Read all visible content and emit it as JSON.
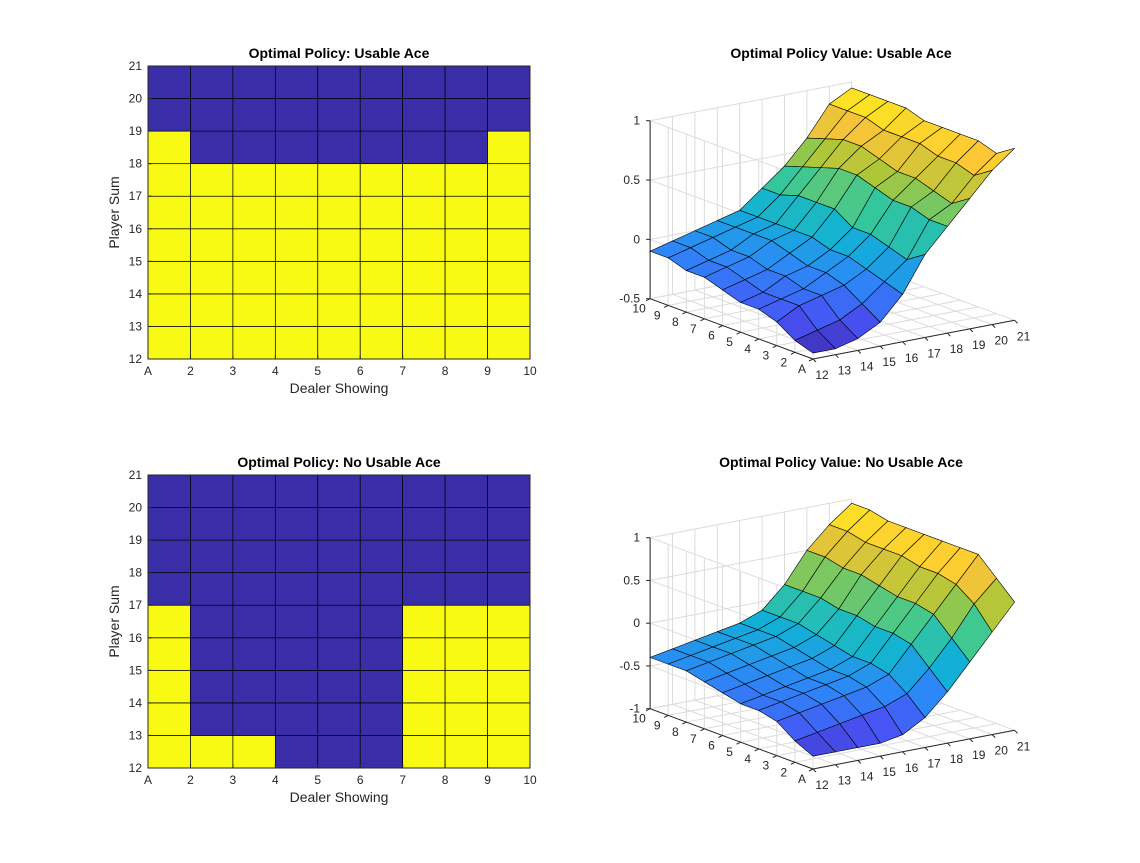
{
  "chart_data": [
    {
      "type": "heatmap",
      "title": "Optimal Policy: Usable Ace",
      "xlabel": "Dealer Showing",
      "ylabel": "Player Sum",
      "x_ticks": [
        "A",
        "2",
        "3",
        "4",
        "5",
        "6",
        "7",
        "8",
        "9",
        "10"
      ],
      "y_ticks": [
        "12",
        "13",
        "14",
        "15",
        "16",
        "17",
        "18",
        "19",
        "20",
        "21"
      ],
      "x_categories": [
        "A",
        "2",
        "3",
        "4",
        "5",
        "6",
        "7",
        "8",
        "9"
      ],
      "y_categories": [
        12,
        13,
        14,
        15,
        16,
        17,
        18,
        19,
        20
      ],
      "value_legend": {
        "0": "#3a2ea8",
        "1": "#f9fa14"
      },
      "rows": [
        [
          1,
          1,
          1,
          1,
          1,
          1,
          1,
          1,
          1
        ],
        [
          1,
          1,
          1,
          1,
          1,
          1,
          1,
          1,
          1
        ],
        [
          1,
          1,
          1,
          1,
          1,
          1,
          1,
          1,
          1
        ],
        [
          1,
          1,
          1,
          1,
          1,
          1,
          1,
          1,
          1
        ],
        [
          1,
          1,
          1,
          1,
          1,
          1,
          1,
          1,
          1
        ],
        [
          1,
          1,
          1,
          1,
          1,
          1,
          1,
          1,
          1
        ],
        [
          1,
          0,
          0,
          0,
          0,
          0,
          0,
          0,
          1
        ],
        [
          0,
          0,
          0,
          0,
          0,
          0,
          0,
          0,
          0
        ],
        [
          0,
          0,
          0,
          0,
          0,
          0,
          0,
          0,
          0
        ]
      ]
    },
    {
      "type": "surface",
      "title": "Optimal Policy Value: Usable Ace",
      "x_ticks": [
        "12",
        "13",
        "14",
        "15",
        "16",
        "17",
        "18",
        "19",
        "20",
        "21"
      ],
      "y_ticks": [
        "A",
        "2",
        "3",
        "4",
        "5",
        "6",
        "7",
        "8",
        "9",
        "10"
      ],
      "z_ticks": [
        "-0.5",
        "0",
        "0.5",
        "1"
      ],
      "zlim": [
        -0.5,
        1
      ],
      "x_values": [
        12,
        13,
        14,
        15,
        16,
        17,
        18,
        19,
        20,
        21
      ],
      "y_values": [
        1,
        2,
        3,
        4,
        5,
        6,
        7,
        8,
        9,
        10
      ],
      "z": [
        [
          -0.45,
          -0.45,
          -0.4,
          -0.3,
          -0.1,
          0.2,
          0.4,
          0.6,
          0.8,
          0.95
        ],
        [
          -0.4,
          -0.35,
          -0.3,
          -0.2,
          -0.05,
          0.1,
          0.4,
          0.5,
          0.7,
          0.85
        ],
        [
          -0.3,
          -0.2,
          -0.15,
          -0.1,
          0.0,
          0.15,
          0.45,
          0.55,
          0.75,
          0.9
        ],
        [
          -0.25,
          -0.2,
          -0.15,
          -0.05,
          0.05,
          0.2,
          0.45,
          0.6,
          0.75,
          0.9
        ],
        [
          -0.25,
          -0.2,
          -0.1,
          -0.05,
          0.05,
          0.2,
          0.5,
          0.6,
          0.8,
          0.9
        ],
        [
          -0.2,
          -0.15,
          -0.1,
          0.0,
          0.1,
          0.3,
          0.55,
          0.65,
          0.8,
          0.9
        ],
        [
          -0.15,
          -0.1,
          -0.05,
          0.05,
          0.1,
          0.3,
          0.55,
          0.7,
          0.8,
          0.95
        ],
        [
          -0.15,
          -0.1,
          -0.05,
          0.05,
          0.1,
          0.3,
          0.5,
          0.7,
          0.85,
          0.95
        ],
        [
          -0.1,
          -0.05,
          0.0,
          0.05,
          0.1,
          0.25,
          0.45,
          0.65,
          0.85,
          0.95
        ],
        [
          -0.1,
          -0.05,
          0.0,
          0.05,
          0.1,
          0.25,
          0.4,
          0.6,
          0.85,
          0.95
        ]
      ]
    },
    {
      "type": "heatmap",
      "title": "Optimal Policy: No Usable Ace",
      "xlabel": "Dealer Showing",
      "ylabel": "Player Sum",
      "x_ticks": [
        "A",
        "2",
        "3",
        "4",
        "5",
        "6",
        "7",
        "8",
        "9",
        "10"
      ],
      "y_ticks": [
        "12",
        "13",
        "14",
        "15",
        "16",
        "17",
        "18",
        "19",
        "20",
        "21"
      ],
      "x_categories": [
        "A",
        "2",
        "3",
        "4",
        "5",
        "6",
        "7",
        "8",
        "9"
      ],
      "y_categories": [
        12,
        13,
        14,
        15,
        16,
        17,
        18,
        19,
        20
      ],
      "value_legend": {
        "0": "#3a2ea8",
        "1": "#f9fa14"
      },
      "rows": [
        [
          1,
          1,
          1,
          0,
          0,
          0,
          1,
          1,
          1
        ],
        [
          1,
          0,
          0,
          0,
          0,
          0,
          1,
          1,
          1
        ],
        [
          1,
          0,
          0,
          0,
          0,
          0,
          1,
          1,
          1
        ],
        [
          1,
          0,
          0,
          0,
          0,
          0,
          1,
          1,
          1
        ],
        [
          1,
          0,
          0,
          0,
          0,
          0,
          1,
          1,
          1
        ],
        [
          0,
          0,
          0,
          0,
          0,
          0,
          0,
          0,
          0
        ],
        [
          0,
          0,
          0,
          0,
          0,
          0,
          0,
          0,
          0
        ],
        [
          0,
          0,
          0,
          0,
          0,
          0,
          0,
          0,
          0
        ],
        [
          0,
          0,
          0,
          0,
          0,
          0,
          0,
          0,
          0
        ]
      ]
    },
    {
      "type": "surface",
      "title": "Optimal Policy Value: No Usable Ace",
      "x_ticks": [
        "12",
        "13",
        "14",
        "15",
        "16",
        "17",
        "18",
        "19",
        "20",
        "21"
      ],
      "y_ticks": [
        "A",
        "2",
        "3",
        "4",
        "5",
        "6",
        "7",
        "8",
        "9",
        "10"
      ],
      "z_ticks": [
        "-1",
        "-0.5",
        "0",
        "0.5",
        "1"
      ],
      "zlim": [
        -1,
        1
      ],
      "x_values": [
        12,
        13,
        14,
        15,
        16,
        17,
        18,
        19,
        20,
        21
      ],
      "y_values": [
        1,
        2,
        3,
        4,
        5,
        6,
        7,
        8,
        9,
        10
      ],
      "z": [
        [
          -0.85,
          -0.85,
          -0.85,
          -0.85,
          -0.8,
          -0.65,
          -0.4,
          -0.1,
          0.2,
          0.5
        ],
        [
          -0.75,
          -0.7,
          -0.65,
          -0.6,
          -0.55,
          -0.45,
          -0.2,
          0.1,
          0.45,
          0.7
        ],
        [
          -0.6,
          -0.55,
          -0.5,
          -0.45,
          -0.4,
          -0.3,
          0.0,
          0.3,
          0.6,
          0.9
        ],
        [
          -0.55,
          -0.5,
          -0.45,
          -0.4,
          -0.35,
          -0.25,
          0.05,
          0.35,
          0.65,
          0.9
        ],
        [
          -0.55,
          -0.5,
          -0.45,
          -0.4,
          -0.35,
          -0.25,
          0.05,
          0.35,
          0.65,
          0.9
        ],
        [
          -0.5,
          -0.45,
          -0.4,
          -0.35,
          -0.3,
          -0.2,
          0.1,
          0.4,
          0.7,
          0.9
        ],
        [
          -0.45,
          -0.4,
          -0.35,
          -0.3,
          -0.25,
          -0.15,
          0.1,
          0.45,
          0.7,
          0.9
        ],
        [
          -0.4,
          -0.35,
          -0.3,
          -0.25,
          -0.2,
          -0.1,
          0.15,
          0.45,
          0.7,
          0.9
        ],
        [
          -0.4,
          -0.35,
          -0.3,
          -0.25,
          -0.2,
          -0.1,
          0.15,
          0.5,
          0.75,
          0.95
        ],
        [
          -0.4,
          -0.35,
          -0.3,
          -0.25,
          -0.2,
          -0.1,
          0.15,
          0.5,
          0.75,
          0.95
        ]
      ]
    }
  ]
}
